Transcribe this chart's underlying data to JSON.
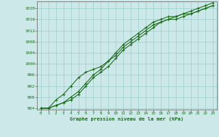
{
  "title": "Graphe pression niveau de la mer (hPa)",
  "xlabel_ticks": [
    0,
    1,
    2,
    3,
    4,
    5,
    6,
    7,
    8,
    9,
    10,
    11,
    12,
    13,
    14,
    15,
    16,
    17,
    18,
    19,
    20,
    21,
    22,
    23
  ],
  "ylim": [
    984,
    1022
  ],
  "xlim": [
    -0.5,
    23.5
  ],
  "yticks": [
    984,
    988,
    992,
    996,
    1000,
    1004,
    1008,
    1012,
    1016,
    1020
  ],
  "background_color": "#cce8e8",
  "grid_color": "#99cccc",
  "line_color": "#1a6b1a",
  "line1": [
    984,
    984,
    985,
    986,
    987,
    989,
    992,
    995,
    997,
    999,
    1002,
    1005,
    1007,
    1009,
    1011,
    1013,
    1015,
    1016,
    1017,
    1018,
    1018,
    1019,
    1020,
    1021
  ],
  "line2": [
    984,
    984,
    987,
    989,
    992,
    995,
    997,
    998,
    999,
    1001,
    1004,
    1007,
    1009,
    1011,
    1013,
    1015,
    1016,
    1017,
    1017,
    1018,
    1019,
    1020,
    1021,
    1022
  ],
  "line3": [
    984,
    984,
    985,
    986,
    988,
    990,
    993,
    996,
    998,
    1001,
    1003,
    1006,
    1008,
    1010,
    1012,
    1014,
    1015,
    1016,
    1016,
    1017,
    1018,
    1019,
    1020,
    1021
  ]
}
